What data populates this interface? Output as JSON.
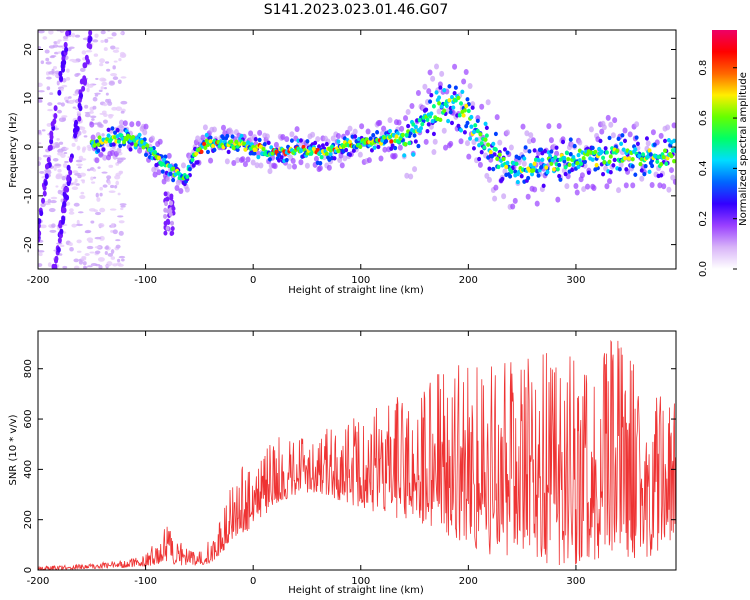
{
  "title": "S141.2023.023.01.46.G07",
  "chart_data": [
    {
      "type": "heatmap",
      "xlabel": "Height of straight line (km)",
      "ylabel": "Frequency (Hz)",
      "xlim": [
        -200,
        393
      ],
      "ylim": [
        -25,
        24
      ],
      "xticks": [
        -200,
        -100,
        0,
        100,
        200,
        300
      ],
      "yticks": [
        -20,
        -10,
        0,
        10,
        20
      ],
      "colorbar": {
        "label": "Normalized spectral amplitude",
        "range": [
          0.0,
          0.95
        ],
        "ticks": [
          "0.0",
          "0.2",
          "0.4",
          "0.6",
          "0.8"
        ],
        "colormap": [
          "#ffffff",
          "#d8b4f8",
          "#9a40ff",
          "#3300ff",
          "#0066ff",
          "#00ddff",
          "#00ff66",
          "#66ff00",
          "#ffee00",
          "#ff6600",
          "#ff0000",
          "#ee0066"
        ]
      },
      "ridge": {
        "x": [
          -145,
          -130,
          -115,
          -100,
          -90,
          -80,
          -72,
          -65,
          -60,
          -55,
          -45,
          -30,
          -15,
          0,
          15,
          30,
          45,
          55,
          65,
          80,
          95,
          110,
          125,
          140,
          150,
          160,
          170,
          180,
          190,
          200,
          210,
          220,
          230,
          240,
          255,
          270,
          285,
          300,
          320,
          340,
          360,
          380,
          393
        ],
        "y": [
          1.0,
          2.0,
          1.5,
          0.5,
          -2.0,
          -4.0,
          -5.5,
          -6.5,
          -5.0,
          -2.0,
          0.5,
          0.5,
          0.5,
          0.0,
          -1.0,
          -1.0,
          0.0,
          -1.0,
          -1.5,
          0.0,
          0.5,
          1.0,
          1.5,
          2.0,
          3.0,
          5.0,
          7.0,
          8.0,
          9.0,
          6.0,
          2.0,
          0.0,
          -3.0,
          -4.5,
          -3.5,
          -4.0,
          -3.0,
          -2.0,
          -2.5,
          -1.5,
          -2.0,
          -2.5,
          -1.5
        ]
      }
    },
    {
      "type": "line",
      "xlabel": "Height of straight line (km)",
      "ylabel": "SNR (10 * v/v)",
      "xlim": [
        -200,
        393
      ],
      "ylim": [
        0,
        950
      ],
      "xticks": [
        -200,
        -100,
        0,
        100,
        200,
        300
      ],
      "yticks": [
        0,
        200,
        400,
        600,
        800
      ],
      "color": "#ee3333",
      "envelope": {
        "x": [
          -200,
          -150,
          -120,
          -100,
          -90,
          -80,
          -70,
          -60,
          -50,
          -40,
          -30,
          -20,
          -10,
          0,
          20,
          40,
          60,
          80,
          100,
          120,
          140,
          160,
          180,
          200,
          220,
          240,
          260,
          280,
          300,
          320,
          340,
          360,
          380,
          393
        ],
        "lower": [
          0,
          5,
          10,
          15,
          20,
          25,
          20,
          15,
          20,
          25,
          60,
          120,
          140,
          170,
          260,
          300,
          310,
          270,
          250,
          220,
          200,
          180,
          140,
          100,
          60,
          40,
          40,
          20,
          20,
          40,
          60,
          40,
          70,
          60
        ],
        "upper": [
          15,
          25,
          40,
          60,
          120,
          180,
          120,
          80,
          80,
          120,
          220,
          360,
          420,
          470,
          520,
          560,
          560,
          570,
          620,
          660,
          700,
          740,
          840,
          820,
          830,
          850,
          840,
          890,
          900,
          860,
          940,
          820,
          680,
          660
        ]
      }
    }
  ]
}
